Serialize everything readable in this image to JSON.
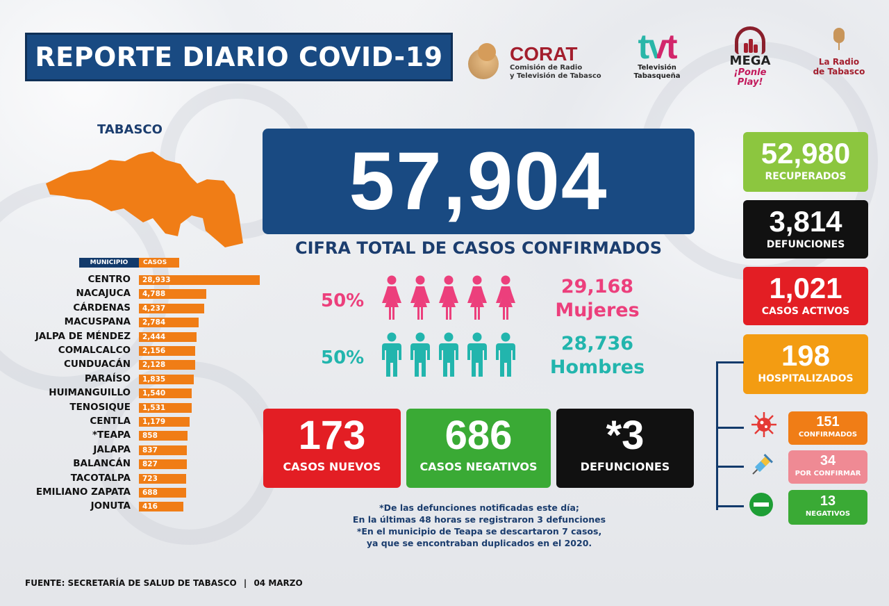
{
  "header": {
    "title": "REPORTE DIARIO COVID-19",
    "logos": {
      "corat": {
        "name": "CORAT",
        "subtitle_1": "Comisión de Radio",
        "subtitle_2": "y Televisión de Tabasco"
      },
      "tvt": {
        "name": "tvt",
        "subtitle_1": "Televisión",
        "subtitle_2": "Tabasqueña"
      },
      "mega": {
        "name": "MEGA",
        "tagline": "¡Ponle Play!"
      },
      "radio": {
        "line1": "La Radio",
        "line2": "de Tabasco"
      }
    }
  },
  "map": {
    "label": "TABASCO",
    "color": "#f07d16"
  },
  "municipios": {
    "col_municipio": "MUNICIPIO",
    "col_casos": "CASOS",
    "rows": [
      {
        "name": "CENTRO",
        "casos": "28,933",
        "value": 28933
      },
      {
        "name": "NACAJUCA",
        "casos": "4,788",
        "value": 4788
      },
      {
        "name": "CÁRDENAS",
        "casos": "4,237",
        "value": 4237
      },
      {
        "name": "MACUSPANA",
        "casos": "2,784",
        "value": 2784
      },
      {
        "name": "JALPA DE MÉNDEZ",
        "casos": "2,444",
        "value": 2444
      },
      {
        "name": "COMALCALCO",
        "casos": "2,156",
        "value": 2156
      },
      {
        "name": "CUNDUACÁN",
        "casos": "2,128",
        "value": 2128
      },
      {
        "name": "PARAÍSO",
        "casos": "1,835",
        "value": 1835
      },
      {
        "name": "HUIMANGUILLO",
        "casos": "1,540",
        "value": 1540
      },
      {
        "name": "TENOSIQUE",
        "casos": "1,531",
        "value": 1531
      },
      {
        "name": "CENTLA",
        "casos": "1,179",
        "value": 1179
      },
      {
        "name": "*TEAPA",
        "casos": "858",
        "value": 858
      },
      {
        "name": "JALAPA",
        "casos": "837",
        "value": 837
      },
      {
        "name": "BALANCÁN",
        "casos": "827",
        "value": 827
      },
      {
        "name": "TACOTALPA",
        "casos": "723",
        "value": 723
      },
      {
        "name": "EMILIANO ZAPATA",
        "casos": "688",
        "value": 688
      },
      {
        "name": "JONUTA",
        "casos": "416",
        "value": 416
      }
    ]
  },
  "total": {
    "value": "57,904",
    "label": "CIFRA TOTAL DE CASOS CONFIRMADOS"
  },
  "gender": {
    "women": {
      "pct": "50%",
      "count": "29,168",
      "label": "Mujeres",
      "color": "#ec3f7c",
      "figures": 5
    },
    "men": {
      "pct": "50%",
      "count": "28,736",
      "label": "Hombres",
      "color": "#22b5ad",
      "figures": 5
    }
  },
  "daily": {
    "nuevos": {
      "value": "173",
      "label": "CASOS NUEVOS",
      "color": "#e31e24"
    },
    "negativos": {
      "value": "686",
      "label": "CASOS NEGATIVOS",
      "color": "#3aaa35"
    },
    "defunciones": {
      "value": "*3",
      "label": "DEFUNCIONES",
      "color": "#111111"
    }
  },
  "summary": {
    "recuperados": {
      "value": "52,980",
      "label": "RECUPERADOS",
      "color": "#8cc63f"
    },
    "defunciones": {
      "value": "3,814",
      "label": "DEFUNCIONES",
      "color": "#111111"
    },
    "activos": {
      "value": "1,021",
      "label": "CASOS ACTIVOS",
      "color": "#e31e24"
    },
    "hospitalizados": {
      "value": "198",
      "label": "HOSPITALIZADOS",
      "color": "#f39c12"
    }
  },
  "hospital": {
    "confirmados": {
      "value": "151",
      "label": "CONFIRMADOS",
      "color": "#f07d16",
      "icon": "virus-icon"
    },
    "por_confirmar": {
      "value": "34",
      "label": "POR CONFIRMAR",
      "color": "#ef8a94",
      "icon": "syringe-icon"
    },
    "negativos": {
      "value": "13",
      "label": "NEGATIVOS",
      "color": "#3aaa35",
      "icon": "minus-circle-icon"
    }
  },
  "notes": [
    "*De las defunciones notificadas este día;",
    "En la últimas 48 horas se registraron 3 defunciones",
    "*En el municipio de Teapa se descartaron 7 casos,",
    "ya que se encontraban duplicados en el 2020."
  ],
  "footer": {
    "source": "FUENTE: SECRETARÍA DE SALUD DE TABASCO",
    "date": "04 MARZO"
  }
}
